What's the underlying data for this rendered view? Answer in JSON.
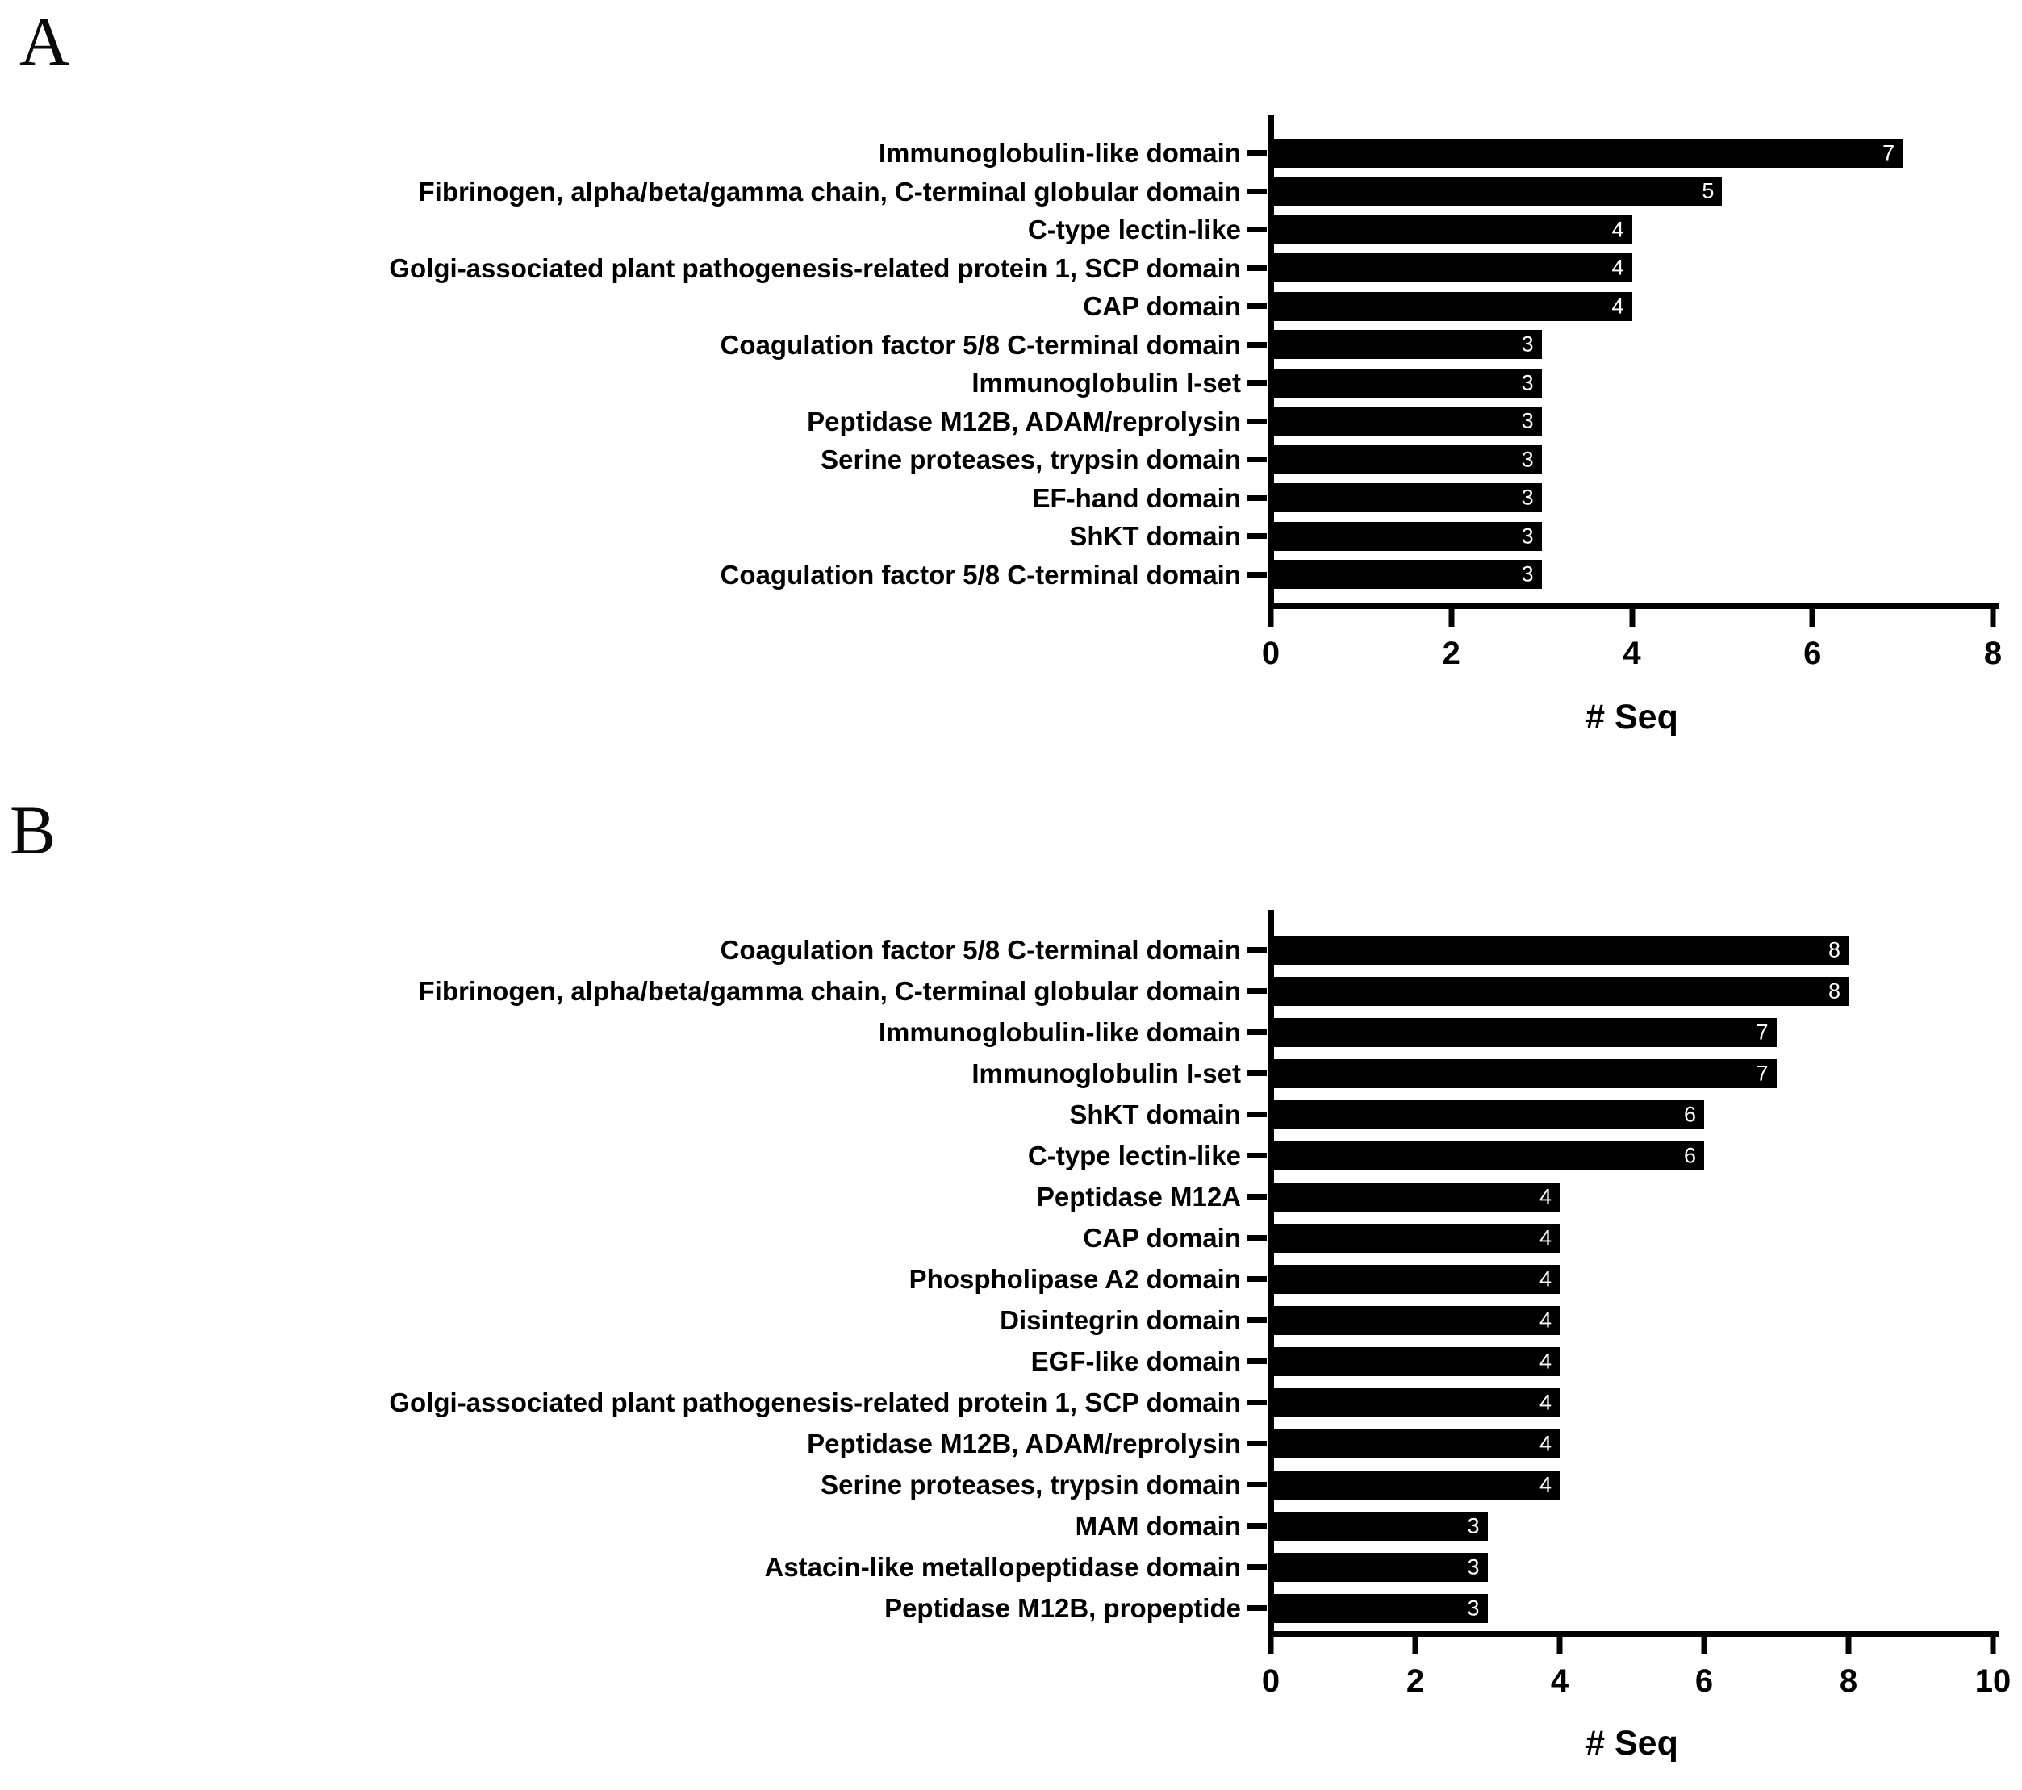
{
  "colors": {
    "bar": "#000000",
    "bar_value_text": "#ffffff",
    "text": "#000000",
    "background": "#ffffff"
  },
  "chart_data": [
    {
      "type": "bar",
      "orientation": "horizontal",
      "panel_letter": "A",
      "title": "",
      "xlabel": "# Seq",
      "xlim": [
        0,
        8
      ],
      "xticks": [
        0,
        2,
        4,
        6,
        8
      ],
      "grid": false,
      "legend": false,
      "categories": [
        "Immunoglobulin-like domain",
        "Fibrinogen, alpha/beta/gamma chain, C-terminal globular domain",
        "C-type lectin-like",
        "Golgi-associated plant pathogenesis-related protein 1, SCP domain",
        "CAP domain",
        "Coagulation factor 5/8 C-terminal domain",
        "Immunoglobulin I-set",
        "Peptidase M12B, ADAM/reprolysin",
        "Serine proteases, trypsin domain",
        "EF-hand domain",
        "ShKT domain",
        "Coagulation factor 5/8 C-terminal domain"
      ],
      "values": [
        7,
        5,
        4,
        4,
        4,
        3,
        3,
        3,
        3,
        3,
        3,
        3
      ]
    },
    {
      "type": "bar",
      "orientation": "horizontal",
      "panel_letter": "B",
      "title": "",
      "xlabel": "# Seq",
      "xlim": [
        0,
        10
      ],
      "xticks": [
        0,
        2,
        4,
        6,
        8,
        10
      ],
      "grid": false,
      "legend": false,
      "categories": [
        "Coagulation factor 5/8 C-terminal domain",
        "Fibrinogen, alpha/beta/gamma chain, C-terminal globular domain",
        "Immunoglobulin-like domain",
        "Immunoglobulin I-set",
        "ShKT domain",
        "C-type lectin-like",
        "Peptidase M12A",
        "CAP domain",
        "Phospholipase A2 domain",
        "Disintegrin domain",
        "EGF-like domain",
        "Golgi-associated plant pathogenesis-related protein 1, SCP domain",
        "Peptidase M12B, ADAM/reprolysin",
        "Serine proteases, trypsin domain",
        "MAM domain",
        "Astacin-like metallopeptidase domain",
        "Peptidase M12B, propeptide"
      ],
      "values": [
        8,
        8,
        7,
        7,
        6,
        6,
        4,
        4,
        4,
        4,
        4,
        4,
        4,
        4,
        3,
        3,
        3
      ]
    }
  ]
}
